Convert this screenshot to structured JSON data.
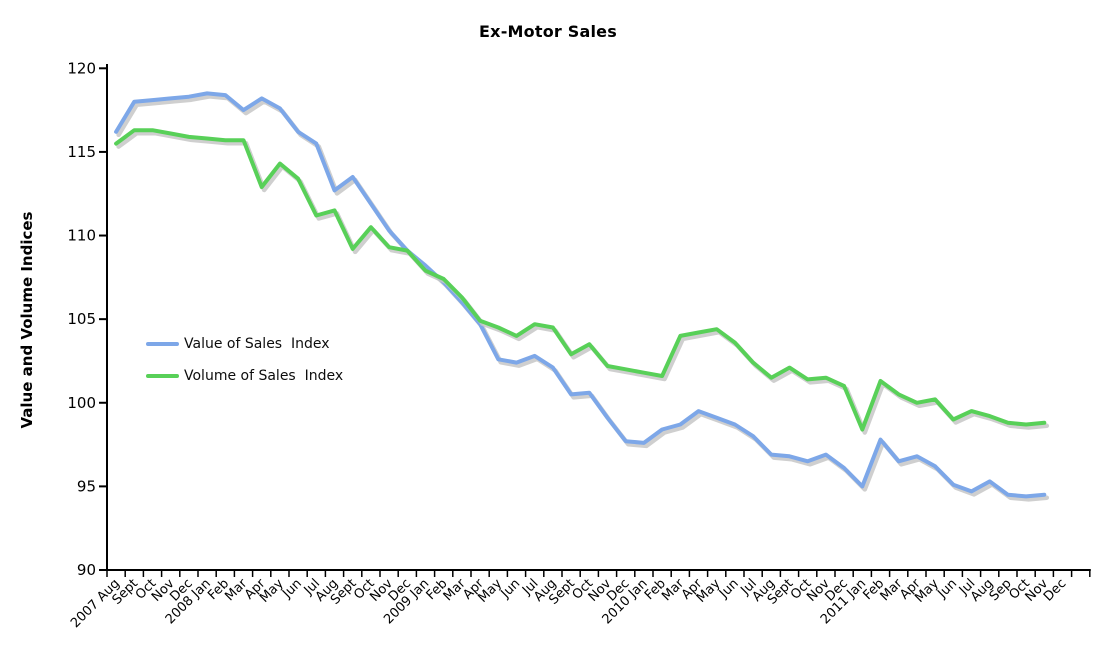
{
  "chart_data": {
    "type": "line",
    "title": "Ex-Motor Sales",
    "ylabel": "Value and Volume Indices",
    "xlabel": "",
    "ylim": [
      90,
      120
    ],
    "yticks": [
      90,
      95,
      100,
      105,
      110,
      115,
      120
    ],
    "grid": false,
    "legend_position": "inside-left",
    "line_style": {
      "width": 4,
      "shadow_color": "#c7c7c7",
      "axis_color": "#000000"
    },
    "categories": [
      "2007 Aug",
      "Sept",
      "Oct",
      "Nov",
      "Dec",
      "2008 Jan",
      "Feb",
      "Mar",
      "Apr",
      "May",
      "Jun",
      "Jul",
      "Aug",
      "Sept",
      "Oct",
      "Nov",
      "Dec",
      "2009 Jan",
      "Feb",
      "Mar",
      "Apr",
      "May",
      "Jun",
      "Jul",
      "Aug",
      "Sept",
      "Oct",
      "Nov",
      "Dec",
      "2010 Jan",
      "Feb",
      "Mar",
      "Apr",
      "May",
      "Jun",
      "Jul",
      "Aug",
      "Sept",
      "Oct",
      "Nov",
      "Dec",
      "2011 Jan",
      "Feb",
      "Mar",
      "Apr",
      "May",
      "Jun",
      "Jul",
      "Aug",
      "Sep",
      "Oct",
      "Nov",
      "Dec"
    ],
    "series": [
      {
        "name": "Value of Sales  Index",
        "color": "#7DA7E8",
        "values": [
          116.2,
          118.0,
          118.1,
          118.2,
          118.3,
          118.5,
          118.4,
          117.5,
          118.2,
          117.6,
          116.2,
          115.5,
          112.7,
          113.5,
          111.9,
          110.3,
          109.1,
          108.2,
          107.2,
          106.0,
          104.7,
          102.6,
          102.4,
          102.8,
          102.1,
          100.5,
          100.6,
          99.1,
          97.7,
          97.6,
          98.4,
          98.7,
          99.5,
          99.1,
          98.7,
          98.0,
          96.9,
          96.8,
          96.5,
          96.9,
          96.1,
          95.0,
          97.8,
          96.5,
          96.8,
          96.2,
          95.1,
          94.7,
          95.3,
          94.5,
          94.4,
          94.5,
          null
        ]
      },
      {
        "name": "Volume of Sales  Index",
        "color": "#58D058",
        "values": [
          115.5,
          116.3,
          116.3,
          116.1,
          115.9,
          115.8,
          115.7,
          115.7,
          112.9,
          114.3,
          113.4,
          111.2,
          111.5,
          109.2,
          110.5,
          109.3,
          109.1,
          107.9,
          107.4,
          106.3,
          104.9,
          104.5,
          104.0,
          104.7,
          104.5,
          102.9,
          103.5,
          102.2,
          102.0,
          101.8,
          101.6,
          104.0,
          104.2,
          104.4,
          103.6,
          102.4,
          101.5,
          102.1,
          101.4,
          101.5,
          101.0,
          98.4,
          101.3,
          100.5,
          100.0,
          100.2,
          99.0,
          99.5,
          99.2,
          98.8,
          98.7,
          98.8,
          null
        ]
      }
    ]
  }
}
